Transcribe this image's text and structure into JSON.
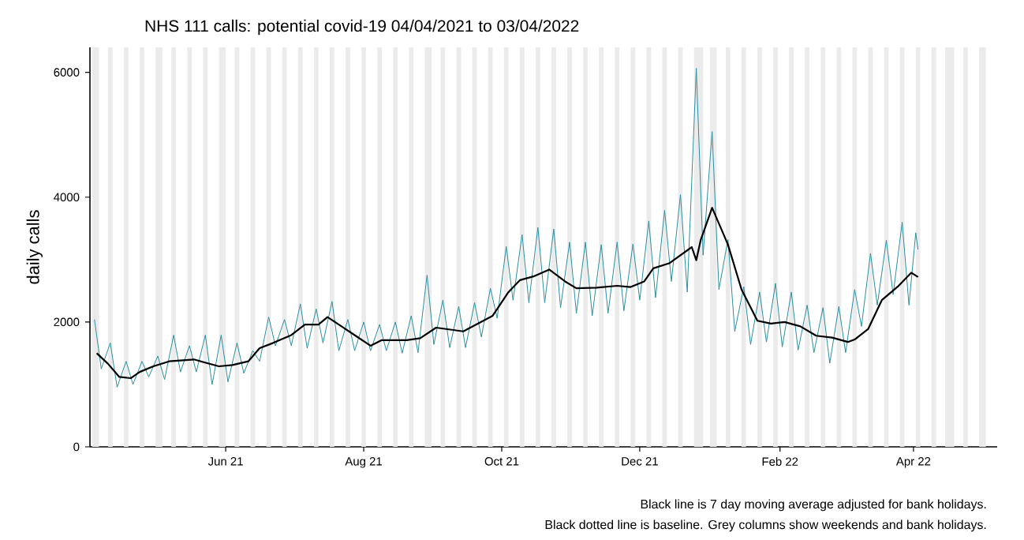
{
  "chart_data": {
    "type": "line",
    "title": "NHS 111 calls: potential covid-19 04/04/2021 to 03/04/2022",
    "ylabel": "daily calls",
    "annotations": [
      "Black line is 7 day moving average adjusted for bank holidays.",
      "Black dotted line is baseline. Grey columns show weekends and bank holidays."
    ],
    "xlim": [
      "2021-04-02",
      "2022-05-08"
    ],
    "xticks": [
      {
        "value": "2021-06-01",
        "label": "Jun 21"
      },
      {
        "value": "2021-08-01",
        "label": "Aug 21"
      },
      {
        "value": "2021-10-01",
        "label": "Oct 21"
      },
      {
        "value": "2021-12-01",
        "label": "Dec 21"
      },
      {
        "value": "2022-02-01",
        "label": "Feb 22"
      },
      {
        "value": "2022-04-01",
        "label": "Apr 22"
      }
    ],
    "ylim": [
      0,
      6400
    ],
    "yticks": [
      0,
      2000,
      4000,
      6000
    ],
    "marker": "none",
    "series": [
      {
        "color": "#2a8fa0",
        "x": [
          "2021-04-04",
          "2021-04-07",
          "2021-04-11",
          "2021-04-14",
          "2021-04-18",
          "2021-04-21",
          "2021-04-25",
          "2021-04-28",
          "2021-05-02",
          "2021-05-05",
          "2021-05-09",
          "2021-05-12",
          "2021-05-16",
          "2021-05-19",
          "2021-05-23",
          "2021-05-26",
          "2021-05-30",
          "2021-06-02",
          "2021-06-06",
          "2021-06-09",
          "2021-06-13",
          "2021-06-16",
          "2021-06-20",
          "2021-06-23",
          "2021-06-27",
          "2021-06-30",
          "2021-07-04",
          "2021-07-07",
          "2021-07-11",
          "2021-07-14",
          "2021-07-18",
          "2021-07-21",
          "2021-07-25",
          "2021-07-28",
          "2021-08-01",
          "2021-08-04",
          "2021-08-08",
          "2021-08-11",
          "2021-08-15",
          "2021-08-18",
          "2021-08-22",
          "2021-08-25",
          "2021-08-29",
          "2021-09-01",
          "2021-09-05",
          "2021-09-08",
          "2021-09-12",
          "2021-09-15",
          "2021-09-19",
          "2021-09-22",
          "2021-09-26",
          "2021-09-29",
          "2021-10-03",
          "2021-10-06",
          "2021-10-10",
          "2021-10-13",
          "2021-10-17",
          "2021-10-20",
          "2021-10-24",
          "2021-10-27",
          "2021-10-31",
          "2021-11-03",
          "2021-11-07",
          "2021-11-10",
          "2021-11-14",
          "2021-11-17",
          "2021-11-21",
          "2021-11-24",
          "2021-11-28",
          "2021-12-01",
          "2021-12-05",
          "2021-12-08",
          "2021-12-12",
          "2021-12-15",
          "2021-12-19",
          "2021-12-22",
          "2021-12-26",
          "2021-12-29",
          "2022-01-02",
          "2022-01-05",
          "2022-01-09",
          "2022-01-12",
          "2022-01-16",
          "2022-01-19",
          "2022-01-23",
          "2022-01-26",
          "2022-01-30",
          "2022-02-02",
          "2022-02-06",
          "2022-02-09",
          "2022-02-13",
          "2022-02-16",
          "2022-02-20",
          "2022-02-23",
          "2022-02-27",
          "2022-03-02",
          "2022-03-06",
          "2022-03-09",
          "2022-03-13",
          "2022-03-16",
          "2022-03-20",
          "2022-03-23",
          "2022-03-27",
          "2022-03-30",
          "2022-04-02",
          "2022-04-03"
        ],
        "values": [
          2040,
          1250,
          1665,
          955,
          1370,
          1000,
          1370,
          1120,
          1455,
          1080,
          1790,
          1200,
          1620,
          1200,
          1790,
          1000,
          1790,
          1040,
          1665,
          1180,
          1540,
          1370,
          2080,
          1620,
          2040,
          1620,
          2290,
          1580,
          2210,
          1665,
          2330,
          1540,
          2040,
          1540,
          2000,
          1540,
          1960,
          1540,
          2000,
          1500,
          2100,
          1510,
          2750,
          1640,
          2350,
          1590,
          2250,
          1590,
          2310,
          1760,
          2540,
          2060,
          3210,
          2350,
          3400,
          2310,
          3515,
          2310,
          3490,
          2230,
          3280,
          2140,
          3280,
          2100,
          3240,
          2140,
          3280,
          2180,
          3250,
          2350,
          3620,
          2390,
          3790,
          2650,
          4040,
          2480,
          6065,
          3070,
          5050,
          2520,
          3320,
          1850,
          2565,
          1640,
          2480,
          1680,
          2620,
          1600,
          2480,
          1550,
          2270,
          1510,
          2230,
          1340,
          2250,
          1510,
          2520,
          1930,
          3100,
          2270,
          3310,
          2440,
          3600,
          2270,
          3430,
          3160
        ]
      },
      {
        "color": "#000000",
        "x": [
          "2021-04-05",
          "2021-04-10",
          "2021-04-15",
          "2021-04-20",
          "2021-04-24",
          "2021-04-30",
          "2021-05-07",
          "2021-05-18",
          "2021-05-29",
          "2021-06-04",
          "2021-06-11",
          "2021-06-16",
          "2021-06-22",
          "2021-06-30",
          "2021-07-06",
          "2021-07-12",
          "2021-07-16",
          "2021-07-21",
          "2021-07-28",
          "2021-08-04",
          "2021-08-09",
          "2021-08-20",
          "2021-08-26",
          "2021-09-02",
          "2021-09-14",
          "2021-09-27",
          "2021-10-04",
          "2021-10-09",
          "2021-10-15",
          "2021-10-22",
          "2021-10-29",
          "2021-11-03",
          "2021-11-12",
          "2021-11-21",
          "2021-11-27",
          "2021-12-03",
          "2021-12-07",
          "2021-12-14",
          "2021-12-24",
          "2021-12-26",
          "2021-12-28",
          "2022-01-02",
          "2022-01-09",
          "2022-01-15",
          "2022-01-22",
          "2022-01-28",
          "2022-02-03",
          "2022-02-10",
          "2022-02-17",
          "2022-02-24",
          "2022-03-03",
          "2022-03-06",
          "2022-03-12",
          "2022-03-18",
          "2022-03-25",
          "2022-03-31",
          "2022-04-03"
        ],
        "values": [
          1500,
          1330,
          1120,
          1100,
          1200,
          1290,
          1370,
          1400,
          1290,
          1310,
          1370,
          1580,
          1665,
          1790,
          1960,
          1960,
          2080,
          1960,
          1790,
          1620,
          1710,
          1710,
          1740,
          1910,
          1850,
          2100,
          2480,
          2670,
          2730,
          2840,
          2650,
          2540,
          2550,
          2580,
          2560,
          2650,
          2860,
          2940,
          3200,
          2990,
          3320,
          3830,
          3240,
          2520,
          2020,
          1975,
          2000,
          1930,
          1780,
          1750,
          1680,
          1720,
          1890,
          2350,
          2565,
          2790,
          2720
        ]
      }
    ],
    "bands": [
      {
        "axis": "x",
        "from": "2021-04-03",
        "to": "2021-04-06",
        "color": "#ebebeb"
      },
      {
        "axis": "x",
        "from": "2021-04-10",
        "to": "2021-04-12",
        "color": "#ebebeb"
      },
      {
        "axis": "x",
        "from": "2021-04-17",
        "to": "2021-04-19",
        "color": "#ebebeb"
      },
      {
        "axis": "x",
        "from": "2021-04-24",
        "to": "2021-04-26",
        "color": "#ebebeb"
      },
      {
        "axis": "x",
        "from": "2021-05-01",
        "to": "2021-05-04",
        "color": "#ebebeb"
      },
      {
        "axis": "x",
        "from": "2021-05-08",
        "to": "2021-05-10",
        "color": "#ebebeb"
      },
      {
        "axis": "x",
        "from": "2021-05-15",
        "to": "2021-05-17",
        "color": "#ebebeb"
      },
      {
        "axis": "x",
        "from": "2021-05-22",
        "to": "2021-05-24",
        "color": "#ebebeb"
      },
      {
        "axis": "x",
        "from": "2021-05-29",
        "to": "2021-06-01",
        "color": "#ebebeb"
      },
      {
        "axis": "x",
        "from": "2021-06-05",
        "to": "2021-06-07",
        "color": "#ebebeb"
      },
      {
        "axis": "x",
        "from": "2021-06-12",
        "to": "2021-06-14",
        "color": "#ebebeb"
      },
      {
        "axis": "x",
        "from": "2021-06-19",
        "to": "2021-06-21",
        "color": "#ebebeb"
      },
      {
        "axis": "x",
        "from": "2021-06-26",
        "to": "2021-06-28",
        "color": "#ebebeb"
      },
      {
        "axis": "x",
        "from": "2021-07-03",
        "to": "2021-07-05",
        "color": "#ebebeb"
      },
      {
        "axis": "x",
        "from": "2021-07-10",
        "to": "2021-07-12",
        "color": "#ebebeb"
      },
      {
        "axis": "x",
        "from": "2021-07-17",
        "to": "2021-07-19",
        "color": "#ebebeb"
      },
      {
        "axis": "x",
        "from": "2021-07-24",
        "to": "2021-07-26",
        "color": "#ebebeb"
      },
      {
        "axis": "x",
        "from": "2021-07-31",
        "to": "2021-08-02",
        "color": "#ebebeb"
      },
      {
        "axis": "x",
        "from": "2021-08-07",
        "to": "2021-08-09",
        "color": "#ebebeb"
      },
      {
        "axis": "x",
        "from": "2021-08-14",
        "to": "2021-08-16",
        "color": "#ebebeb"
      },
      {
        "axis": "x",
        "from": "2021-08-21",
        "to": "2021-08-23",
        "color": "#ebebeb"
      },
      {
        "axis": "x",
        "from": "2021-08-28",
        "to": "2021-08-31",
        "color": "#ebebeb"
      },
      {
        "axis": "x",
        "from": "2021-09-04",
        "to": "2021-09-06",
        "color": "#ebebeb"
      },
      {
        "axis": "x",
        "from": "2021-09-11",
        "to": "2021-09-13",
        "color": "#ebebeb"
      },
      {
        "axis": "x",
        "from": "2021-09-18",
        "to": "2021-09-20",
        "color": "#ebebeb"
      },
      {
        "axis": "x",
        "from": "2021-09-25",
        "to": "2021-09-27",
        "color": "#ebebeb"
      },
      {
        "axis": "x",
        "from": "2021-10-02",
        "to": "2021-10-04",
        "color": "#ebebeb"
      },
      {
        "axis": "x",
        "from": "2021-10-09",
        "to": "2021-10-11",
        "color": "#ebebeb"
      },
      {
        "axis": "x",
        "from": "2021-10-16",
        "to": "2021-10-18",
        "color": "#ebebeb"
      },
      {
        "axis": "x",
        "from": "2021-10-23",
        "to": "2021-10-25",
        "color": "#ebebeb"
      },
      {
        "axis": "x",
        "from": "2021-10-30",
        "to": "2021-11-01",
        "color": "#ebebeb"
      },
      {
        "axis": "x",
        "from": "2021-11-06",
        "to": "2021-11-08",
        "color": "#ebebeb"
      },
      {
        "axis": "x",
        "from": "2021-11-13",
        "to": "2021-11-15",
        "color": "#ebebeb"
      },
      {
        "axis": "x",
        "from": "2021-11-20",
        "to": "2021-11-22",
        "color": "#ebebeb"
      },
      {
        "axis": "x",
        "from": "2021-11-27",
        "to": "2021-11-29",
        "color": "#ebebeb"
      },
      {
        "axis": "x",
        "from": "2021-12-04",
        "to": "2021-12-06",
        "color": "#ebebeb"
      },
      {
        "axis": "x",
        "from": "2021-12-11",
        "to": "2021-12-13",
        "color": "#ebebeb"
      },
      {
        "axis": "x",
        "from": "2021-12-18",
        "to": "2021-12-20",
        "color": "#ebebeb"
      },
      {
        "axis": "x",
        "from": "2021-12-25",
        "to": "2021-12-29",
        "color": "#ebebeb"
      },
      {
        "axis": "x",
        "from": "2022-01-01",
        "to": "2022-01-04",
        "color": "#ebebeb"
      },
      {
        "axis": "x",
        "from": "2022-01-08",
        "to": "2022-01-10",
        "color": "#ebebeb"
      },
      {
        "axis": "x",
        "from": "2022-01-15",
        "to": "2022-01-17",
        "color": "#ebebeb"
      },
      {
        "axis": "x",
        "from": "2022-01-22",
        "to": "2022-01-24",
        "color": "#ebebeb"
      },
      {
        "axis": "x",
        "from": "2022-01-29",
        "to": "2022-01-31",
        "color": "#ebebeb"
      },
      {
        "axis": "x",
        "from": "2022-02-05",
        "to": "2022-02-07",
        "color": "#ebebeb"
      },
      {
        "axis": "x",
        "from": "2022-02-12",
        "to": "2022-02-14",
        "color": "#ebebeb"
      },
      {
        "axis": "x",
        "from": "2022-02-19",
        "to": "2022-02-21",
        "color": "#ebebeb"
      },
      {
        "axis": "x",
        "from": "2022-02-26",
        "to": "2022-02-28",
        "color": "#ebebeb"
      },
      {
        "axis": "x",
        "from": "2022-03-05",
        "to": "2022-03-07",
        "color": "#ebebeb"
      },
      {
        "axis": "x",
        "from": "2022-03-12",
        "to": "2022-03-14",
        "color": "#ebebeb"
      },
      {
        "axis": "x",
        "from": "2022-03-19",
        "to": "2022-03-21",
        "color": "#ebebeb"
      },
      {
        "axis": "x",
        "from": "2022-03-26",
        "to": "2022-03-28",
        "color": "#ebebeb"
      },
      {
        "axis": "x",
        "from": "2022-04-02",
        "to": "2022-04-04",
        "color": "#ebebeb"
      },
      {
        "axis": "x",
        "from": "2022-04-09",
        "to": "2022-04-11",
        "color": "#ebebeb"
      },
      {
        "axis": "x",
        "from": "2022-04-15",
        "to": "2022-04-19",
        "color": "#ebebeb"
      },
      {
        "axis": "x",
        "from": "2022-04-23",
        "to": "2022-04-25",
        "color": "#ebebeb"
      },
      {
        "axis": "x",
        "from": "2022-04-30",
        "to": "2022-05-03",
        "color": "#ebebeb"
      }
    ]
  }
}
